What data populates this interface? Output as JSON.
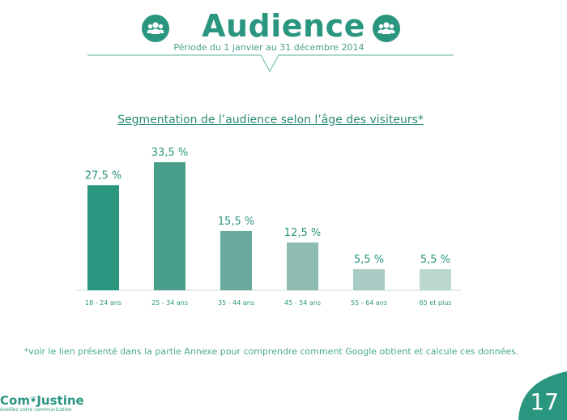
{
  "header": {
    "title": "Audience",
    "period": "Période du 1 janvier au 31 décembre 2014",
    "icon_left": "group-icon",
    "icon_right": "group-icon"
  },
  "chart_data": {
    "type": "bar",
    "title": "Segmentation de l’audience selon l’âge des visiteurs*",
    "categories": [
      "18 - 24 ans",
      "25 - 34 ans",
      "35 - 44 ans",
      "45 - 54 ans",
      "55 - 64 ans",
      "65 et plus"
    ],
    "values": [
      27.5,
      33.5,
      15.5,
      12.5,
      5.5,
      5.5
    ],
    "data_labels": [
      "27,5 %",
      "33,5 %",
      "15,5 %",
      "12,5 %",
      "5,5 %",
      "5,5 %"
    ],
    "colors": [
      "#2a9680",
      "#4a9e8c",
      "#6aaa9c",
      "#8fbcb2",
      "#a8cbc4",
      "#bad7d0"
    ],
    "ylim": [
      0,
      35
    ],
    "grid": false,
    "legend": "none"
  },
  "footnote": "*voir le lien présenté dans la partie Annexe pour comprendre comment Google obtient et calcule ces données.",
  "logo": {
    "name_part1": "Com",
    "name_part2": "Justine",
    "tagline": "éveillez votre communication"
  },
  "page_number": "17",
  "colors": {
    "accent": "#2a9680",
    "text_light": "#4aa896",
    "axis": "#c8dcd7"
  }
}
